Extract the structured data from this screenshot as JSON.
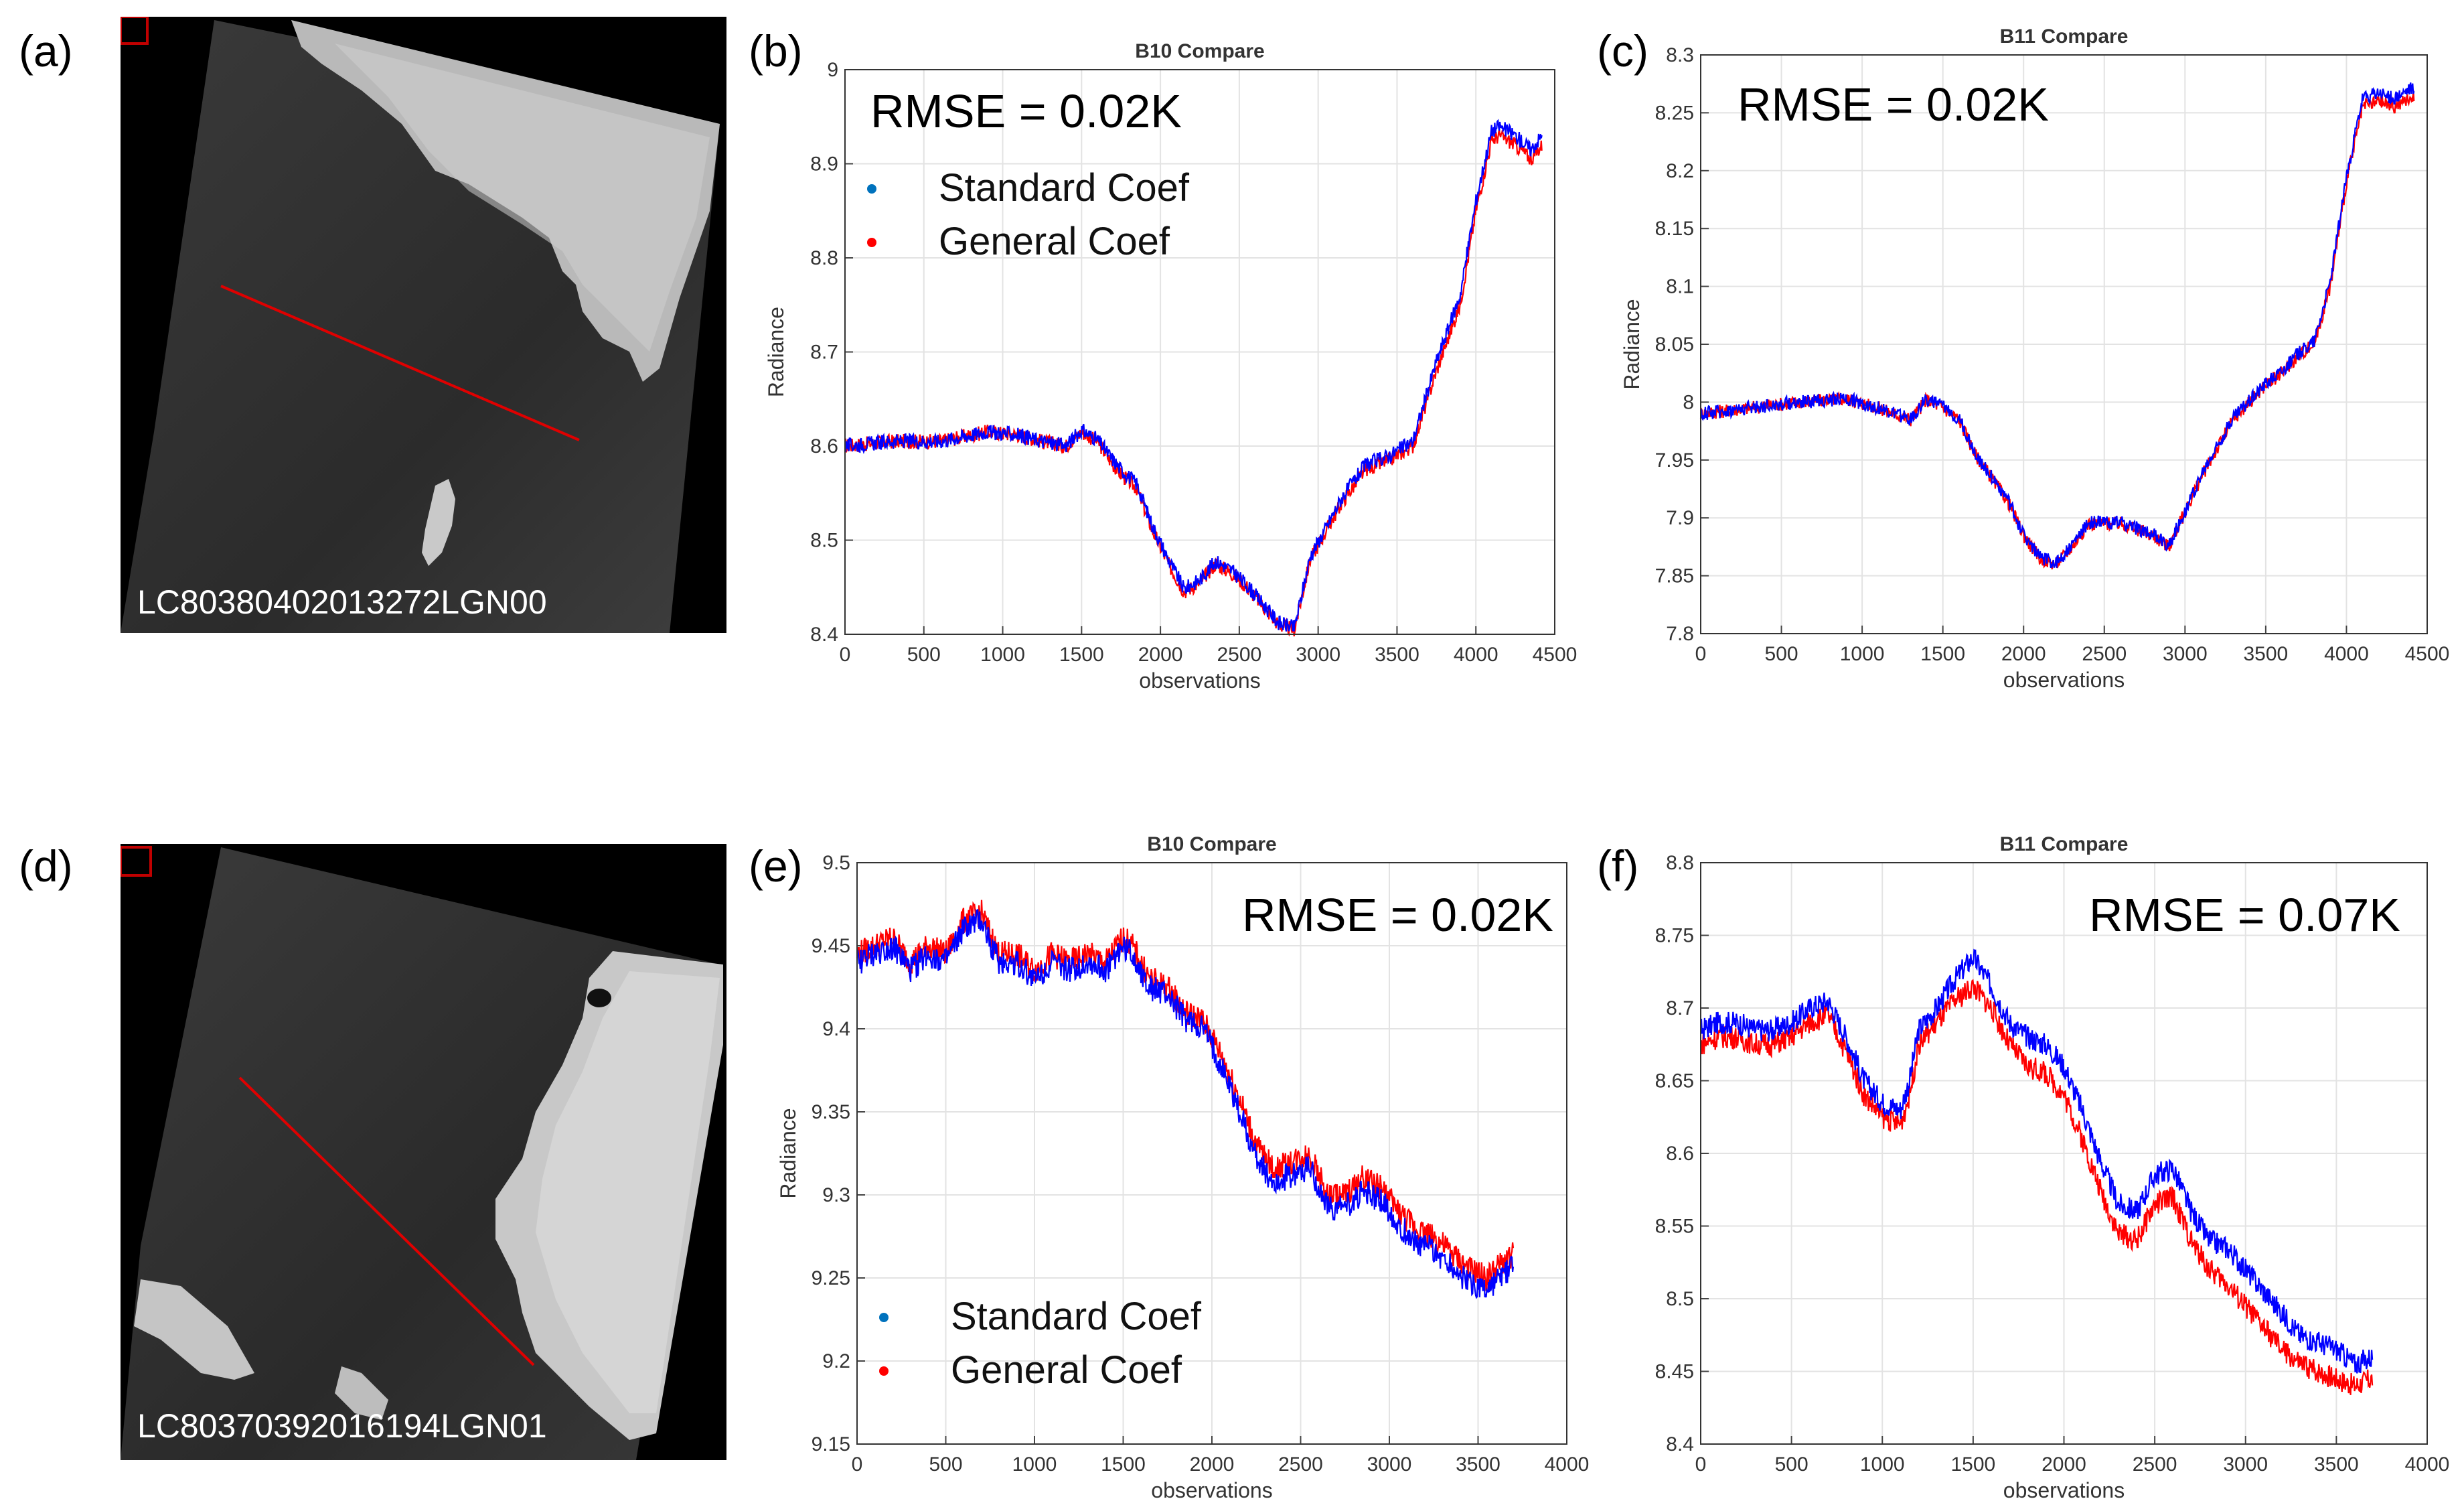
{
  "panels": {
    "a": {
      "label": "(a)",
      "scene_id": "LC80380402013272LGN00"
    },
    "b": {
      "label": "(b)"
    },
    "c": {
      "label": "(c)"
    },
    "d": {
      "label": "(d)",
      "scene_id": "LC80370392016194LGN01"
    },
    "e": {
      "label": "(e)"
    },
    "f": {
      "label": "(f)"
    }
  },
  "colors": {
    "standard": "#0000ff",
    "general": "#ff0000",
    "standard_legend": "#0072bd",
    "profile_line": "#e00000"
  },
  "chart_data": [
    {
      "id": "b",
      "type": "line",
      "title": "B10 Compare",
      "xlabel": "observations",
      "ylabel": "Radiance",
      "xlim": [
        0,
        4500
      ],
      "ylim": [
        8.4,
        9.0
      ],
      "xticks": [
        0,
        500,
        1000,
        1500,
        2000,
        2500,
        3000,
        3500,
        4000,
        4500
      ],
      "xtick_labels": [
        "0",
        "500",
        "1000",
        "1500",
        "2000",
        "2500",
        "3000",
        "3500",
        "4000",
        "4500"
      ],
      "yticks": [
        8.4,
        8.5,
        8.6,
        8.7,
        8.8,
        8.9,
        9.0
      ],
      "ytick_labels": [
        "8.4",
        "8.5",
        "8.6",
        "8.7",
        "8.8",
        "8.9",
        "9"
      ],
      "annotation": "RMSE = 0.02K",
      "legend": [
        "Standard Coef",
        "General Coef"
      ],
      "noise": 0.008,
      "series": [
        {
          "name": "General Coef",
          "x": [
            0,
            300,
            600,
            900,
            1100,
            1250,
            1400,
            1500,
            1600,
            1700,
            1750,
            1850,
            1950,
            2050,
            2150,
            2250,
            2350,
            2450,
            2550,
            2650,
            2750,
            2850,
            2950,
            3050,
            3150,
            3300,
            3450,
            3600,
            3750,
            3900,
            4000,
            4100,
            4150,
            4250,
            4350,
            4420
          ],
          "y": [
            8.6,
            8.605,
            8.605,
            8.615,
            8.612,
            8.605,
            8.6,
            8.615,
            8.605,
            8.58,
            8.57,
            8.555,
            8.51,
            8.475,
            8.445,
            8.455,
            8.475,
            8.465,
            8.45,
            8.43,
            8.41,
            8.405,
            8.48,
            8.51,
            8.54,
            8.575,
            8.585,
            8.6,
            8.68,
            8.75,
            8.85,
            8.925,
            8.93,
            8.92,
            8.905,
            8.92
          ]
        },
        {
          "name": "Standard Coef",
          "x": [
            0,
            300,
            600,
            900,
            1100,
            1250,
            1400,
            1500,
            1600,
            1700,
            1750,
            1850,
            1950,
            2050,
            2150,
            2250,
            2350,
            2450,
            2550,
            2650,
            2750,
            2850,
            2950,
            3050,
            3150,
            3300,
            3450,
            3600,
            3750,
            3900,
            4000,
            4100,
            4150,
            4250,
            4350,
            4420
          ],
          "y": [
            8.6,
            8.605,
            8.605,
            8.615,
            8.612,
            8.605,
            8.6,
            8.617,
            8.607,
            8.585,
            8.575,
            8.56,
            8.515,
            8.48,
            8.448,
            8.458,
            8.478,
            8.468,
            8.452,
            8.432,
            8.412,
            8.407,
            8.483,
            8.513,
            8.545,
            8.58,
            8.59,
            8.605,
            8.69,
            8.76,
            8.86,
            8.935,
            8.94,
            8.93,
            8.915,
            8.93
          ]
        }
      ]
    },
    {
      "id": "c",
      "type": "line",
      "title": "B11 Compare",
      "xlabel": "observations",
      "ylabel": "Radiance",
      "xlim": [
        0,
        4500
      ],
      "ylim": [
        7.8,
        8.3
      ],
      "xticks": [
        0,
        500,
        1000,
        1500,
        2000,
        2500,
        3000,
        3500,
        4000,
        4500
      ],
      "xtick_labels": [
        "0",
        "500",
        "1000",
        "1500",
        "2000",
        "2500",
        "3000",
        "3500",
        "4000",
        "4500"
      ],
      "yticks": [
        7.8,
        7.85,
        7.9,
        7.95,
        8.0,
        8.05,
        8.1,
        8.15,
        8.2,
        8.25,
        8.3
      ],
      "ytick_labels": [
        "7.8",
        "7.85",
        "7.9",
        "7.95",
        "8",
        "8.05",
        "8.1",
        "8.15",
        "8.2",
        "8.25",
        "8.3"
      ],
      "annotation": "RMSE = 0.02K",
      "legend": [],
      "noise": 0.006,
      "series": [
        {
          "name": "General Coef",
          "x": [
            0,
            300,
            600,
            900,
            1100,
            1300,
            1400,
            1500,
            1600,
            1700,
            1800,
            1900,
            2000,
            2100,
            2200,
            2300,
            2400,
            2500,
            2600,
            2700,
            2800,
            2900,
            3000,
            3100,
            3200,
            3300,
            3400,
            3500,
            3600,
            3700,
            3800,
            3900,
            4000,
            4100,
            4200,
            4300,
            4420
          ],
          "y": [
            7.99,
            7.995,
            8.0,
            8.003,
            7.995,
            7.985,
            8.002,
            7.995,
            7.985,
            7.955,
            7.935,
            7.915,
            7.885,
            7.865,
            7.86,
            7.875,
            7.895,
            7.895,
            7.895,
            7.89,
            7.885,
            7.875,
            7.905,
            7.935,
            7.96,
            7.985,
            8.0,
            8.015,
            8.025,
            8.04,
            8.05,
            8.1,
            8.19,
            8.255,
            8.26,
            8.255,
            8.265
          ]
        },
        {
          "name": "Standard Coef",
          "x": [
            0,
            300,
            600,
            900,
            1100,
            1300,
            1400,
            1500,
            1600,
            1700,
            1800,
            1900,
            2000,
            2100,
            2200,
            2300,
            2400,
            2500,
            2600,
            2700,
            2800,
            2900,
            3000,
            3100,
            3200,
            3300,
            3400,
            3500,
            3600,
            3700,
            3800,
            3900,
            4000,
            4100,
            4200,
            4300,
            4420
          ],
          "y": [
            7.99,
            7.995,
            8.0,
            8.003,
            7.995,
            7.985,
            8.003,
            7.996,
            7.986,
            7.956,
            7.936,
            7.916,
            7.886,
            7.866,
            7.861,
            7.876,
            7.896,
            7.896,
            7.896,
            7.891,
            7.886,
            7.876,
            7.906,
            7.936,
            7.962,
            7.987,
            8.002,
            8.017,
            8.027,
            8.042,
            8.053,
            8.104,
            8.195,
            8.262,
            8.267,
            8.262,
            8.272
          ]
        }
      ]
    },
    {
      "id": "e",
      "type": "line",
      "title": "B10 Compare",
      "xlabel": "observations",
      "ylabel": "Radiance",
      "xlim": [
        0,
        4000
      ],
      "ylim": [
        9.15,
        9.5
      ],
      "xticks": [
        0,
        500,
        1000,
        1500,
        2000,
        2500,
        3000,
        3500,
        4000
      ],
      "xtick_labels": [
        "0",
        "500",
        "1000",
        "1500",
        "2000",
        "2500",
        "3000",
        "3500",
        "4000"
      ],
      "yticks": [
        9.15,
        9.2,
        9.25,
        9.3,
        9.35,
        9.4,
        9.45,
        9.5
      ],
      "ytick_labels": [
        "9.15",
        "9.2",
        "9.25",
        "9.3",
        "9.35",
        "9.4",
        "9.45",
        "9.5"
      ],
      "annotation": "RMSE = 0.02K",
      "legend": [
        "Standard Coef",
        "General Coef"
      ],
      "noise": 0.008,
      "series": [
        {
          "name": "General Coef",
          "x": [
            0,
            100,
            200,
            300,
            400,
            500,
            600,
            700,
            800,
            900,
            1000,
            1100,
            1200,
            1300,
            1400,
            1500,
            1550,
            1650,
            1750,
            1850,
            1950,
            2050,
            2150,
            2250,
            2350,
            2450,
            2550,
            2650,
            2750,
            2850,
            2950,
            3050,
            3150,
            3250,
            3350,
            3450,
            3550,
            3650,
            3700
          ],
          "y": [
            9.445,
            9.45,
            9.455,
            9.44,
            9.45,
            9.445,
            9.465,
            9.47,
            9.445,
            9.445,
            9.435,
            9.445,
            9.44,
            9.445,
            9.44,
            9.455,
            9.45,
            9.43,
            9.425,
            9.41,
            9.405,
            9.385,
            9.36,
            9.33,
            9.315,
            9.32,
            9.325,
            9.3,
            9.3,
            9.31,
            9.305,
            9.29,
            9.28,
            9.275,
            9.265,
            9.255,
            9.25,
            9.26,
            9.265
          ]
        },
        {
          "name": "Standard Coef",
          "x": [
            0,
            100,
            200,
            300,
            400,
            500,
            600,
            700,
            800,
            900,
            1000,
            1100,
            1200,
            1300,
            1400,
            1500,
            1550,
            1650,
            1750,
            1850,
            1950,
            2050,
            2150,
            2250,
            2350,
            2450,
            2550,
            2650,
            2750,
            2850,
            2950,
            3050,
            3150,
            3250,
            3350,
            3450,
            3550,
            3650,
            3700
          ],
          "y": [
            9.44,
            9.445,
            9.45,
            9.435,
            9.445,
            9.44,
            9.46,
            9.465,
            9.44,
            9.44,
            9.43,
            9.44,
            9.435,
            9.44,
            9.435,
            9.45,
            9.445,
            9.425,
            9.42,
            9.405,
            9.4,
            9.378,
            9.352,
            9.322,
            9.307,
            9.312,
            9.317,
            9.292,
            9.292,
            9.302,
            9.297,
            9.282,
            9.272,
            9.267,
            9.257,
            9.247,
            9.242,
            9.252,
            9.258
          ]
        }
      ]
    },
    {
      "id": "f",
      "type": "line",
      "title": "B11 Compare",
      "xlabel": "observations",
      "ylabel": "",
      "xlim": [
        0,
        4000
      ],
      "ylim": [
        8.4,
        8.8
      ],
      "xticks": [
        0,
        500,
        1000,
        1500,
        2000,
        2500,
        3000,
        3500,
        4000
      ],
      "xtick_labels": [
        "0",
        "500",
        "1000",
        "1500",
        "2000",
        "2500",
        "3000",
        "3500",
        "4000"
      ],
      "yticks": [
        8.4,
        8.45,
        8.5,
        8.55,
        8.6,
        8.65,
        8.7,
        8.75,
        8.8
      ],
      "ytick_labels": [
        "8.4",
        "8.45",
        "8.5",
        "8.55",
        "8.6",
        "8.65",
        "8.7",
        "8.75",
        "8.8"
      ],
      "annotation": "RMSE = 0.07K",
      "legend": [],
      "noise": 0.008,
      "series": [
        {
          "name": "General Coef",
          "x": [
            0,
            100,
            200,
            300,
            400,
            500,
            600,
            700,
            800,
            900,
            1000,
            1100,
            1150,
            1200,
            1300,
            1400,
            1500,
            1600,
            1700,
            1800,
            1900,
            2000,
            2100,
            2200,
            2300,
            2400,
            2500,
            2600,
            2700,
            2800,
            2900,
            3000,
            3100,
            3200,
            3300,
            3400,
            3500,
            3600,
            3700
          ],
          "y": [
            8.675,
            8.68,
            8.68,
            8.675,
            8.675,
            8.68,
            8.69,
            8.695,
            8.67,
            8.64,
            8.625,
            8.62,
            8.64,
            8.675,
            8.69,
            8.705,
            8.715,
            8.7,
            8.675,
            8.66,
            8.655,
            8.64,
            8.61,
            8.575,
            8.545,
            8.54,
            8.565,
            8.57,
            8.54,
            8.52,
            8.51,
            8.495,
            8.48,
            8.465,
            8.455,
            8.45,
            8.445,
            8.44,
            8.445
          ]
        },
        {
          "name": "Standard Coef",
          "x": [
            0,
            100,
            200,
            300,
            400,
            500,
            600,
            700,
            800,
            900,
            1000,
            1100,
            1150,
            1200,
            1300,
            1400,
            1500,
            1600,
            1700,
            1800,
            1900,
            2000,
            2100,
            2200,
            2300,
            2400,
            2500,
            2600,
            2700,
            2800,
            2900,
            3000,
            3100,
            3200,
            3300,
            3400,
            3500,
            3600,
            3700
          ],
          "y": [
            8.685,
            8.69,
            8.69,
            8.685,
            8.685,
            8.69,
            8.7,
            8.705,
            8.68,
            8.65,
            8.635,
            8.63,
            8.65,
            8.685,
            8.7,
            8.72,
            8.735,
            8.715,
            8.69,
            8.68,
            8.675,
            8.66,
            8.63,
            8.595,
            8.565,
            8.56,
            8.585,
            8.59,
            8.56,
            8.54,
            8.535,
            8.52,
            8.505,
            8.49,
            8.475,
            8.47,
            8.465,
            8.455,
            8.46
          ]
        }
      ]
    }
  ]
}
